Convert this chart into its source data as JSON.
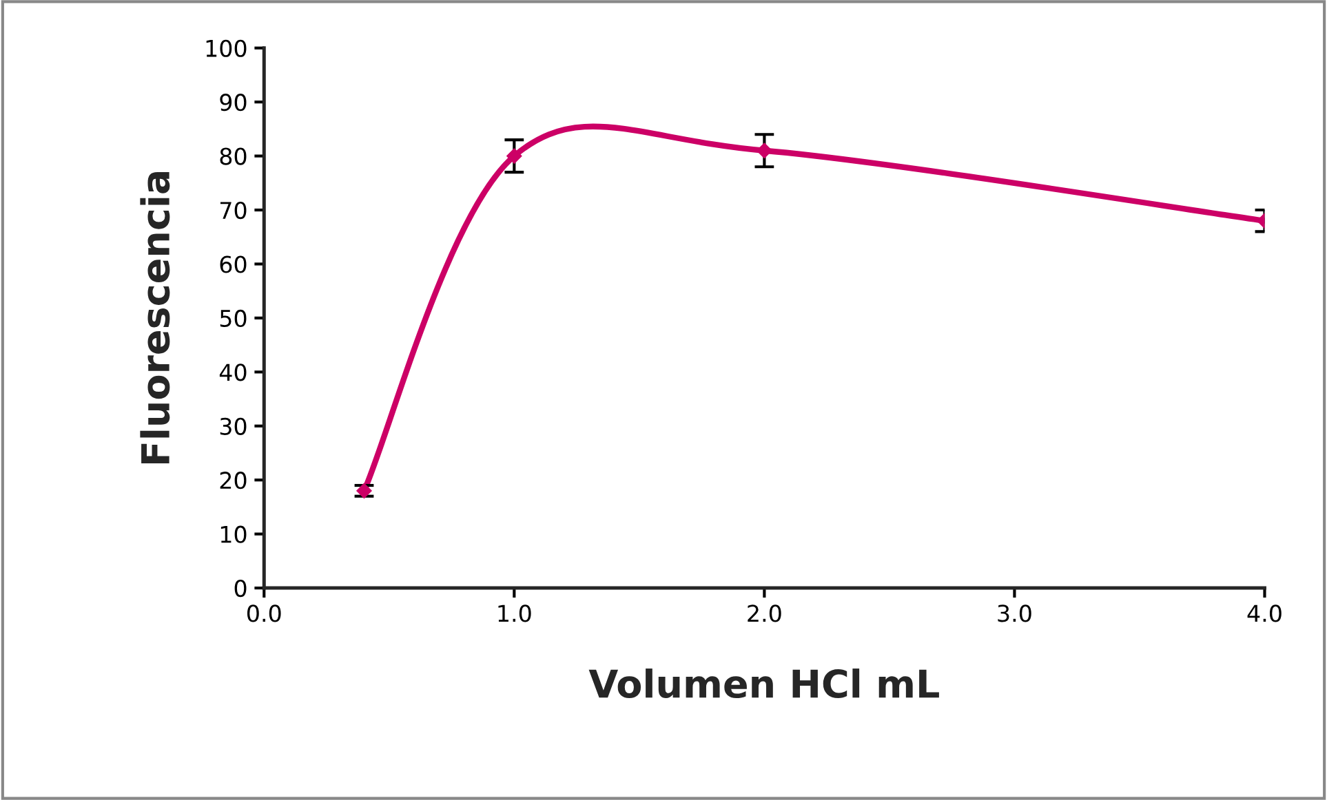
{
  "chart_data": {
    "type": "line",
    "xlabel": "Volumen HCl mL",
    "ylabel": "Fluorescencia",
    "x": [
      0.4,
      1.0,
      2.0,
      4.0
    ],
    "series": [
      {
        "color": "#cc0066",
        "values": [
          18,
          80,
          81,
          68
        ],
        "errors": [
          1,
          3,
          3,
          2
        ]
      }
    ],
    "xlim": [
      0,
      4
    ],
    "xticks": [
      {
        "value": 0,
        "label": "0.0"
      },
      {
        "value": 1,
        "label": "1.0"
      },
      {
        "value": 2,
        "label": "2.0"
      },
      {
        "value": 3,
        "label": "3.0"
      },
      {
        "value": 4,
        "label": "4.0"
      }
    ],
    "ylim": [
      0,
      100
    ],
    "yticks": [
      0,
      10,
      20,
      30,
      40,
      50,
      60,
      70,
      80,
      90,
      100
    ],
    "grid": false,
    "legend": false,
    "marker": "diamond",
    "line_style": "solid"
  }
}
